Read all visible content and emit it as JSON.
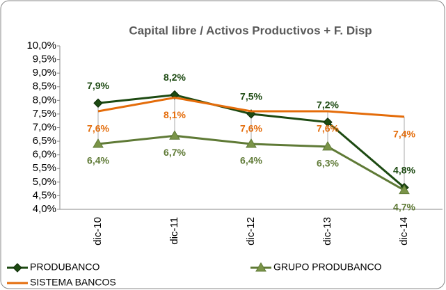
{
  "chart_data": {
    "type": "line",
    "title": "Capital libre / Activos Productivos + F. Disp",
    "categories": [
      "dic-10",
      "dic-11",
      "dic-12",
      "dic-13",
      "dic-14"
    ],
    "series": [
      {
        "name": "PRODUBANCO",
        "color": "#1d4a12",
        "marker": "diamond",
        "values": [
          7.9,
          8.2,
          7.5,
          7.2,
          4.8
        ],
        "value_labels": [
          "7,9%",
          "8,2%",
          "7,5%",
          "7,2%",
          "4,8%"
        ]
      },
      {
        "name": "GRUPO PRODUBANCO",
        "color": "#5f7a36",
        "marker": "triangle",
        "values": [
          6.4,
          6.7,
          6.4,
          6.3,
          4.7
        ],
        "value_labels": [
          "6,4%",
          "6,7%",
          "6,4%",
          "6,3%",
          "4,7%"
        ]
      },
      {
        "name": "SISTEMA BANCOS",
        "color": "#e46c0a",
        "marker": "none",
        "values": [
          7.6,
          8.1,
          7.6,
          7.6,
          7.4
        ],
        "value_labels": [
          "7,6%",
          "8,1%",
          "7,6%",
          "7,6%",
          "7,4%"
        ]
      }
    ],
    "ylim": [
      4,
      10
    ],
    "yticks": [
      {
        "value": 4,
        "label": "4,0%"
      },
      {
        "value": 4.5,
        "label": "4,5%"
      },
      {
        "value": 5,
        "label": "5,0%"
      },
      {
        "value": 5.5,
        "label": "5,5%"
      },
      {
        "value": 6,
        "label": "6,0%"
      },
      {
        "value": 6.5,
        "label": "6,5%"
      },
      {
        "value": 7,
        "label": "7,0%"
      },
      {
        "value": 7.5,
        "label": "7,5%"
      },
      {
        "value": 8,
        "label": "8,0%"
      },
      {
        "value": 8.5,
        "label": "8,5%"
      },
      {
        "value": 9,
        "label": "9,0%"
      },
      {
        "value": 9.5,
        "label": "9,5%"
      },
      {
        "value": 10,
        "label": "10,0%"
      }
    ],
    "grid": false
  }
}
